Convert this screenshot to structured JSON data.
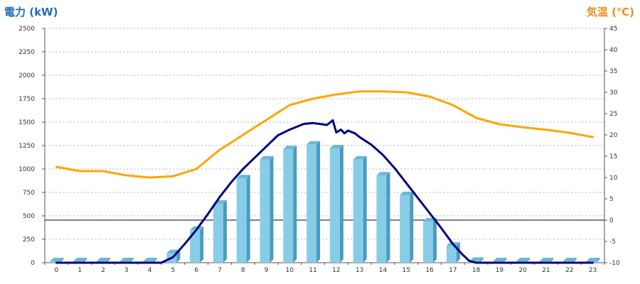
{
  "chart_data": {
    "type": "bar",
    "y_left_title": "電力 (kW)",
    "y_right_title": "気温 (℃)",
    "x_categories": [
      "0",
      "1",
      "2",
      "3",
      "4",
      "5",
      "6",
      "7",
      "8",
      "9",
      "10",
      "11",
      "12",
      "13",
      "14",
      "15",
      "16",
      "17",
      "18",
      "19",
      "20",
      "21",
      "22",
      "23"
    ],
    "y_left_ticks": [
      0,
      250,
      500,
      750,
      1000,
      1250,
      1500,
      1750,
      2000,
      2250,
      2500
    ],
    "y_left_range": [
      0,
      2500
    ],
    "y_right_ticks": [
      -10,
      -5,
      0,
      5,
      10,
      15,
      20,
      25,
      30,
      35,
      40,
      45
    ],
    "y_right_range": [
      -10,
      45
    ],
    "zero_line_right": 0,
    "grid": true,
    "series": [
      {
        "axis": "left",
        "type": "bar3d",
        "color": "#87cde8",
        "values": [
          15,
          15,
          15,
          15,
          15,
          100,
          350,
          630,
          900,
          1100,
          1210,
          1260,
          1220,
          1100,
          930,
          720,
          440,
          180,
          20,
          15,
          15,
          15,
          15,
          15
        ]
      },
      {
        "axis": "left",
        "type": "line",
        "color": "#000080",
        "points": [
          [
            0,
            0
          ],
          [
            1,
            0
          ],
          [
            2,
            0
          ],
          [
            3,
            0
          ],
          [
            4,
            0
          ],
          [
            4.5,
            0
          ],
          [
            5,
            60
          ],
          [
            5.5,
            200
          ],
          [
            6,
            350
          ],
          [
            6.5,
            520
          ],
          [
            7,
            700
          ],
          [
            7.5,
            860
          ],
          [
            8,
            1000
          ],
          [
            8.5,
            1120
          ],
          [
            9,
            1240
          ],
          [
            9.5,
            1360
          ],
          [
            10,
            1420
          ],
          [
            10.3,
            1450
          ],
          [
            10.6,
            1480
          ],
          [
            11,
            1490
          ],
          [
            11.3,
            1480
          ],
          [
            11.6,
            1470
          ],
          [
            11.85,
            1520
          ],
          [
            12,
            1390
          ],
          [
            12.2,
            1420
          ],
          [
            12.35,
            1380
          ],
          [
            12.5,
            1410
          ],
          [
            12.8,
            1380
          ],
          [
            13,
            1340
          ],
          [
            13.5,
            1260
          ],
          [
            14,
            1150
          ],
          [
            14.5,
            1010
          ],
          [
            15,
            850
          ],
          [
            15.5,
            690
          ],
          [
            16,
            530
          ],
          [
            16.5,
            370
          ],
          [
            17,
            200
          ],
          [
            17.4,
            90
          ],
          [
            17.7,
            20
          ],
          [
            18,
            0
          ],
          [
            19,
            0
          ],
          [
            20,
            0
          ],
          [
            21,
            0
          ],
          [
            22,
            0
          ],
          [
            23,
            0
          ]
        ]
      },
      {
        "axis": "right",
        "type": "line",
        "color": "#ffa500",
        "points": [
          [
            0,
            12.5
          ],
          [
            1,
            11.5
          ],
          [
            2,
            11.5
          ],
          [
            3,
            10.5
          ],
          [
            4,
            10
          ],
          [
            5,
            10.3
          ],
          [
            6,
            12
          ],
          [
            7,
            16.5
          ],
          [
            8,
            20
          ],
          [
            9,
            23.5
          ],
          [
            10,
            27
          ],
          [
            11,
            28.5
          ],
          [
            12,
            29.5
          ],
          [
            13,
            30.2
          ],
          [
            14,
            30.2
          ],
          [
            15,
            30
          ],
          [
            16,
            29
          ],
          [
            17,
            27
          ],
          [
            18,
            24
          ],
          [
            19,
            22.5
          ],
          [
            20,
            21.8
          ],
          [
            21,
            21.2
          ],
          [
            22,
            20.5
          ],
          [
            23,
            19.5
          ]
        ]
      }
    ]
  }
}
